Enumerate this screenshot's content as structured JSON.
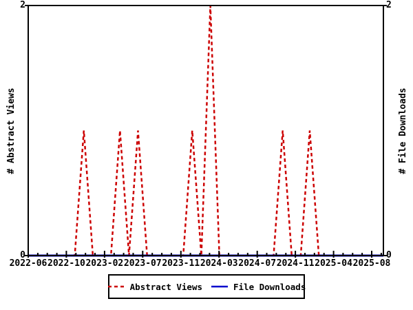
{
  "chart_data": {
    "type": "line",
    "title": "",
    "background": "#ffffff",
    "grid": false,
    "frame_color": "#000000",
    "x_axis": {
      "tick_labels": [
        "2022-06",
        "2022-10",
        "2023-02",
        "2023-07",
        "2023-11",
        "2024-03",
        "2024-07",
        "2024-11",
        "2025-04",
        "2025-08"
      ],
      "range": [
        "2022-06",
        "2025-09"
      ],
      "minor_ticks": "monthly"
    },
    "y_axis_left": {
      "label": "# Abstract Views",
      "tick_labels": [
        "0",
        "2"
      ],
      "range": [
        0,
        2
      ]
    },
    "y_axis_right": {
      "label": "# File Downloads",
      "tick_labels": [
        "0",
        "2"
      ],
      "range": [
        0,
        2
      ]
    },
    "series": [
      {
        "name": "Abstract Views",
        "color": "#cc0000",
        "style": "dashed",
        "baseline_value": 0,
        "points_nonzero": {
          "2022-12": 1,
          "2023-04": 1,
          "2023-06": 1,
          "2023-12": 1,
          "2024-02": 2,
          "2024-10": 1,
          "2025-01": 1
        }
      },
      {
        "name": "File Downloads",
        "color": "#0000cc",
        "style": "solid",
        "constant_value": 0
      }
    ],
    "legend": {
      "position": "bottom-center",
      "entries": [
        "Abstract Views",
        "File Downloads"
      ]
    }
  }
}
